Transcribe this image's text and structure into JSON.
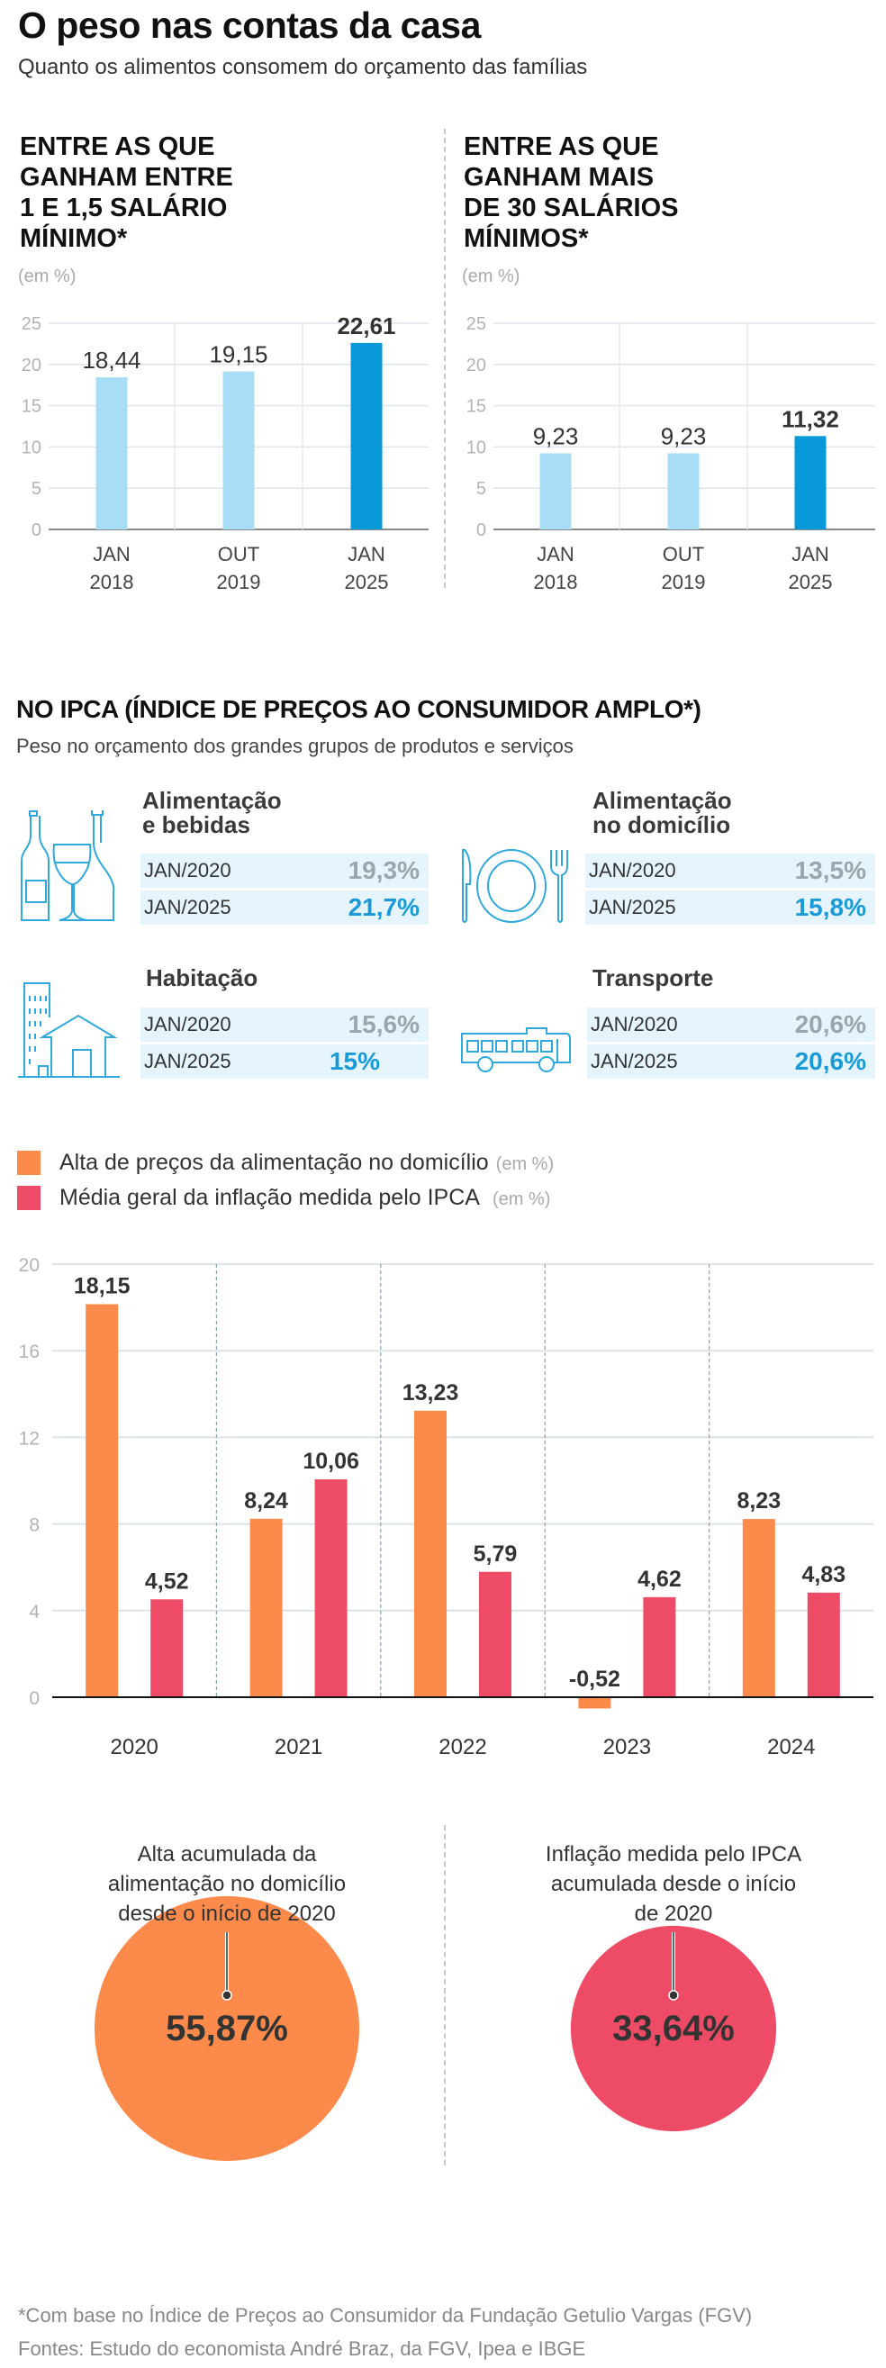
{
  "header": {
    "title": "O peso nas contas da casa",
    "subtitle": "Quanto os alimentos consomem do orçamento das famílias"
  },
  "income_groups": [
    {
      "heading_lines": [
        "ENTRE AS QUE",
        "GANHAM ENTRE",
        "1 E 1,5 SALÁRIO",
        "MÍNIMO*"
      ],
      "unit": "(em %)"
    },
    {
      "heading_lines": [
        "ENTRE AS QUE",
        "GANHAM MAIS",
        "DE 30 SALÁRIOS",
        "MÍNIMOS*"
      ],
      "unit": "(em %)"
    }
  ],
  "ipca": {
    "title": "NO IPCA (ÍNDICE DE PREÇOS AO CONSUMIDOR AMPLO*)",
    "subtitle": "Peso no orçamento dos grandes grupos de produtos e serviços",
    "groups": [
      {
        "title_lines": [
          "Alimentação",
          "e bebidas"
        ],
        "icon": "wine-bottles-icon",
        "rows": [
          {
            "label": "JAN/2020",
            "value": "19,3%"
          },
          {
            "label": "JAN/2025",
            "value": "21,7%"
          }
        ]
      },
      {
        "title_lines": [
          "Alimentação",
          "no domicílio"
        ],
        "icon": "plate-cutlery-icon",
        "rows": [
          {
            "label": "JAN/2020",
            "value": "13,5%"
          },
          {
            "label": "JAN/2025",
            "value": "15,8%"
          }
        ]
      },
      {
        "title_lines": [
          "Habitação"
        ],
        "icon": "house-building-icon",
        "rows": [
          {
            "label": "JAN/2020",
            "value": "15,6%"
          },
          {
            "label": "JAN/2025",
            "value": "15%"
          }
        ]
      },
      {
        "title_lines": [
          "Transporte"
        ],
        "icon": "bus-icon",
        "rows": [
          {
            "label": "JAN/2020",
            "value": "20,6%"
          },
          {
            "label": "JAN/2025",
            "value": "20,6%"
          }
        ]
      }
    ]
  },
  "legend": [
    {
      "label": "Alta de preços da alimentação no domicílio",
      "unit": "(em %)",
      "color": "#fb8a4b"
    },
    {
      "label": "Média geral da inflação medida pelo IPCA",
      "unit": "(em %)",
      "color": "#ee4b66"
    }
  ],
  "accumulated": [
    {
      "label_lines": [
        "Alta acumulada da",
        "alimentação no domicílio",
        "desde o início de 2020"
      ],
      "value": "55,87%",
      "number": 55.87,
      "color": "#fb8a4b"
    },
    {
      "label_lines": [
        "Inflação medida pelo IPCA",
        "acumulada desde o início",
        "de 2020"
      ],
      "value": "33,64%",
      "number": 33.64,
      "color": "#ee4b66"
    }
  ],
  "footer": {
    "note": "*Com base no Índice de Preços ao Consumidor da Fundação Getulio Vargas (FGV)",
    "sources": "Fontes: Estudo do economista André Braz, da FGV, Ipea e IBGE"
  },
  "chart_data": [
    {
      "type": "bar",
      "categories": [
        "JAN 2018",
        "OUT 2019",
        "JAN 2025"
      ],
      "values": [
        18.44,
        19.15,
        22.61
      ],
      "value_labels": [
        "18,44",
        "19,15",
        "22,61"
      ],
      "highlight_index": 2,
      "colors": {
        "normal": "#a8def5",
        "highlight": "#0a99d8"
      },
      "ylabel": "(em %)",
      "ylim": [
        0,
        25
      ],
      "yticks": [
        0,
        5,
        10,
        15,
        20,
        25
      ],
      "grid": true
    },
    {
      "type": "bar",
      "categories": [
        "JAN 2018",
        "OUT 2019",
        "JAN 2025"
      ],
      "values": [
        9.23,
        9.23,
        11.32
      ],
      "value_labels": [
        "9,23",
        "9,23",
        "11,32"
      ],
      "highlight_index": 2,
      "colors": {
        "normal": "#a8def5",
        "highlight": "#0a99d8"
      },
      "ylabel": "(em %)",
      "ylim": [
        0,
        25
      ],
      "yticks": [
        0,
        5,
        10,
        15,
        20,
        25
      ],
      "grid": true
    },
    {
      "type": "bar",
      "categories": [
        "2020",
        "2021",
        "2022",
        "2023",
        "2024"
      ],
      "series": [
        {
          "name": "Alta de preços da alimentação no domicílio",
          "values": [
            18.15,
            8.24,
            13.23,
            -0.52,
            8.23
          ],
          "value_labels": [
            "18,15",
            "8,24",
            "13,23",
            "-0,52",
            "8,23"
          ],
          "color": "#fb8a4b"
        },
        {
          "name": "Média geral da inflação medida pelo IPCA",
          "values": [
            4.52,
            10.06,
            5.79,
            4.62,
            4.83
          ],
          "value_labels": [
            "4,52",
            "10,06",
            "5,79",
            "4,62",
            "4,83"
          ],
          "color": "#ee4b66"
        }
      ],
      "ylim": [
        -1,
        20
      ],
      "yticks": [
        0,
        4,
        8,
        12,
        16,
        20
      ],
      "grid": true,
      "legend": "top-left"
    }
  ]
}
